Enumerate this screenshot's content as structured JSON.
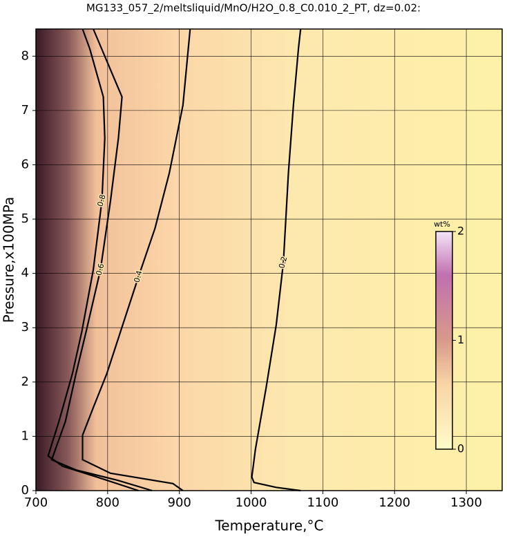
{
  "chart_data": {
    "type": "contour",
    "title": "MG133_057_2/meltsliquid/MnO/H2O_0.8_C0.010_2_PT, dz=0.02:",
    "x_label": "Temperature,°C",
    "y_label": "Pressure,x100MPa",
    "xlim": [
      700,
      1350
    ],
    "ylim": [
      0,
      8.5
    ],
    "xticks": [
      700,
      800,
      900,
      1000,
      1100,
      1200,
      1300
    ],
    "yticks": [
      0,
      1,
      2,
      3,
      4,
      5,
      6,
      7,
      8
    ],
    "grid": true,
    "series": [
      {
        "name": "0.2",
        "color": "#000000",
        "x": [
          1069,
          1066,
          1059,
          1052,
          1045,
          1035,
          1021,
          1006,
          1001,
          1004,
          1035,
          1069
        ],
        "y": [
          8.5,
          8.14,
          7.1,
          5.85,
          4.2,
          3.05,
          1.9,
          0.76,
          0.25,
          0.15,
          0.06,
          0
        ]
      },
      {
        "name": "0.4",
        "color": "#000000",
        "x": [
          915,
          905,
          886,
          866,
          843,
          818,
          799,
          780,
          765,
          765,
          804,
          891,
          905
        ],
        "y": [
          8.5,
          7.1,
          5.85,
          4.83,
          3.94,
          2.93,
          2.16,
          1.53,
          1.02,
          0.57,
          0.32,
          0.13,
          0
        ]
      },
      {
        "name": "0.6",
        "color": "#000000",
        "x": [
          780,
          820,
          815,
          804,
          790,
          770,
          756,
          741,
          722,
          756,
          814,
          862
        ],
        "y": [
          8.5,
          7.25,
          6.49,
          5.34,
          4.07,
          2.93,
          2.16,
          1.27,
          0.57,
          0.38,
          0.19,
          0
        ]
      },
      {
        "name": "0.8",
        "color": "#000000",
        "x": [
          765,
          775,
          794,
          796,
          792,
          780,
          764,
          751,
          732,
          717,
          737,
          785,
          843
        ],
        "y": [
          8.5,
          8.14,
          7.25,
          6.49,
          5.34,
          4.07,
          2.93,
          2.16,
          1.27,
          0.64,
          0.45,
          0.25,
          0
        ]
      }
    ],
    "colorbar": {
      "label": "wt%",
      "lim": [
        0,
        2
      ],
      "ticks": [
        0,
        1,
        2
      ]
    }
  }
}
